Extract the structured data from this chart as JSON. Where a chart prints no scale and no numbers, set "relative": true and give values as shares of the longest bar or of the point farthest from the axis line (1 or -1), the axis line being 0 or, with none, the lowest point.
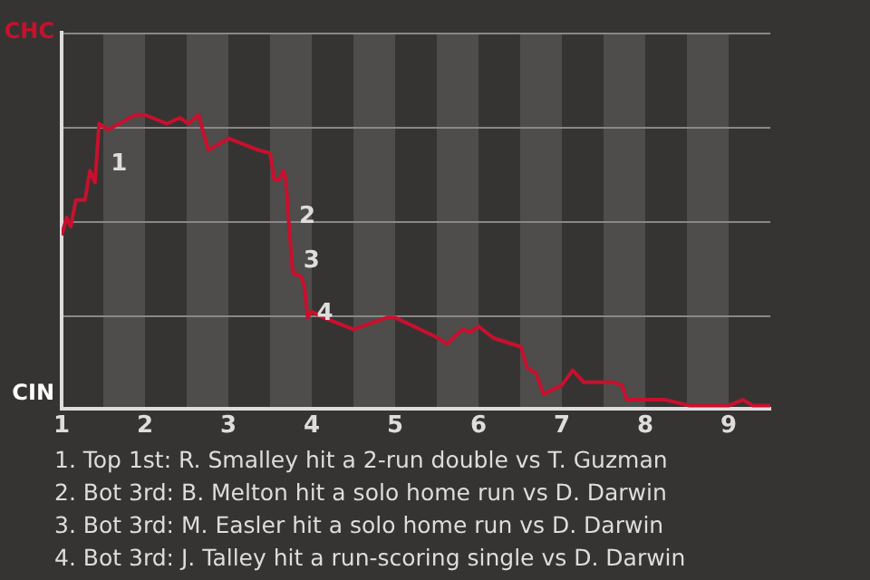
{
  "chart_data": {
    "type": "line",
    "relative": true,
    "x": [
      1,
      1.06,
      1.11,
      1.17,
      1.28,
      1.34,
      1.4,
      1.45,
      1.56,
      1.88,
      2,
      2.26,
      2.42,
      2.52,
      2.64,
      2.76,
      3,
      3.36,
      3.5,
      3.55,
      3.61,
      3.66,
      3.69,
      3.72,
      3.77,
      3.78,
      3.87,
      3.91,
      3.95,
      4,
      4.14,
      4.5,
      4.9,
      5,
      5.52,
      5.62,
      5.81,
      5.9,
      6,
      6.18,
      6.51,
      6.58,
      6.69,
      6.78,
      6.86,
      7,
      7.13,
      7.26,
      7.48,
      7.61,
      7.72,
      7.78,
      7.88,
      8,
      8.24,
      8.53,
      9,
      9.17,
      9.29,
      9.5
    ],
    "series": [
      {
        "color": "#c8102e",
        "values": [
          0.59,
          0.65,
          0.62,
          0.71,
          0.71,
          0.81,
          0.77,
          0.97,
          0.95,
          1,
          1,
          0.97,
          0.99,
          0.97,
          1,
          0.88,
          0.92,
          0.88,
          0.87,
          0.78,
          0.78,
          0.81,
          0.78,
          0.65,
          0.47,
          0.46,
          0.45,
          0.42,
          0.31,
          0.33,
          0.31,
          0.27,
          0.31,
          0.31,
          0.24,
          0.22,
          0.27,
          0.26,
          0.28,
          0.24,
          0.21,
          0.14,
          0.12,
          0.05,
          0.06,
          0.08,
          0.13,
          0.09,
          0.09,
          0.09,
          0.08,
          0.03,
          0.03,
          0.03,
          0.03,
          0.01,
          0.01,
          0.03,
          0.01,
          0.01
        ]
      }
    ],
    "xlim": [
      1,
      9.5
    ],
    "xticks": [
      1,
      2,
      3,
      4,
      5,
      6,
      7,
      8,
      9
    ],
    "grid": "y",
    "marker": "none",
    "bands": [
      {
        "axis": "x",
        "from": 1.5,
        "to": 2,
        "color": "#4e4d4b"
      },
      {
        "axis": "x",
        "from": 2.5,
        "to": 3,
        "color": "#4e4d4b"
      },
      {
        "axis": "x",
        "from": 3.5,
        "to": 4,
        "color": "#4e4d4b"
      },
      {
        "axis": "x",
        "from": 4.5,
        "to": 5,
        "color": "#4e4d4b"
      },
      {
        "axis": "x",
        "from": 5.5,
        "to": 6,
        "color": "#4e4d4b"
      },
      {
        "axis": "x",
        "from": 6.5,
        "to": 7,
        "color": "#4e4d4b"
      },
      {
        "axis": "x",
        "from": 7.5,
        "to": 8,
        "color": "#4e4d4b"
      },
      {
        "axis": "x",
        "from": 8.5,
        "to": 9,
        "color": "#4e4d4b"
      }
    ],
    "annotations": [
      "CHC",
      "CIN",
      {
        "text": "1",
        "x": 1.48,
        "y": 0.82
      },
      {
        "text": "2",
        "x": 3.74,
        "y": 0.64
      },
      {
        "text": "3",
        "x": 3.79,
        "y": 0.49
      },
      {
        "text": "4",
        "x": 3.95,
        "y": 0.31
      },
      "1. Top 1st: R. Smalley hit a 2-run double vs T. Guzman",
      "2. Bot 3rd: B. Melton hit a solo home run vs D. Darwin",
      "3. Bot 3rd: M. Easler hit a solo home run vs D. Darwin",
      "4. Bot 3rd: J. Talley hit a run-scoring single vs D. Darwin"
    ]
  }
}
